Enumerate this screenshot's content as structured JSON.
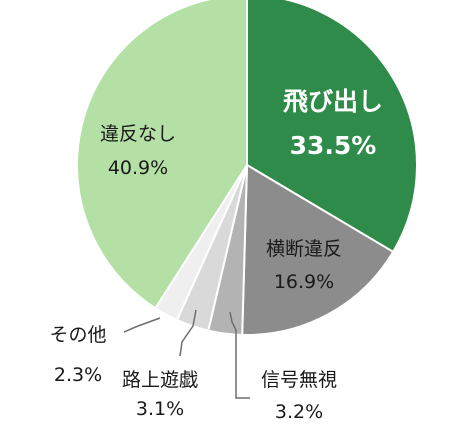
{
  "chart_data": {
    "type": "pie",
    "start": "top",
    "direction": "clockwise",
    "slices": [
      {
        "label": "飛び出し",
        "value": 33.5,
        "display": "33.5%",
        "color": "#2e8b49",
        "text_color": "#ffffff"
      },
      {
        "label": "横断違反",
        "value": 16.9,
        "display": "16.9%",
        "color": "#8c8c8c",
        "text_color": "#1a1a1a"
      },
      {
        "label": "信号無視",
        "value": 3.2,
        "display": "3.2%",
        "color": "#b3b3b3",
        "text_color": "#1a1a1a"
      },
      {
        "label": "路上遊戯",
        "value": 3.1,
        "display": "3.1%",
        "color": "#d9d9d9",
        "text_color": "#1a1a1a"
      },
      {
        "label": "その他",
        "value": 2.3,
        "display": "2.3%",
        "color": "#efefef",
        "text_color": "#1a1a1a"
      },
      {
        "label": "違反なし",
        "value": 40.9,
        "display": "40.9%",
        "color": "#b4e0a5",
        "text_color": "#1a1a1a"
      }
    ]
  }
}
